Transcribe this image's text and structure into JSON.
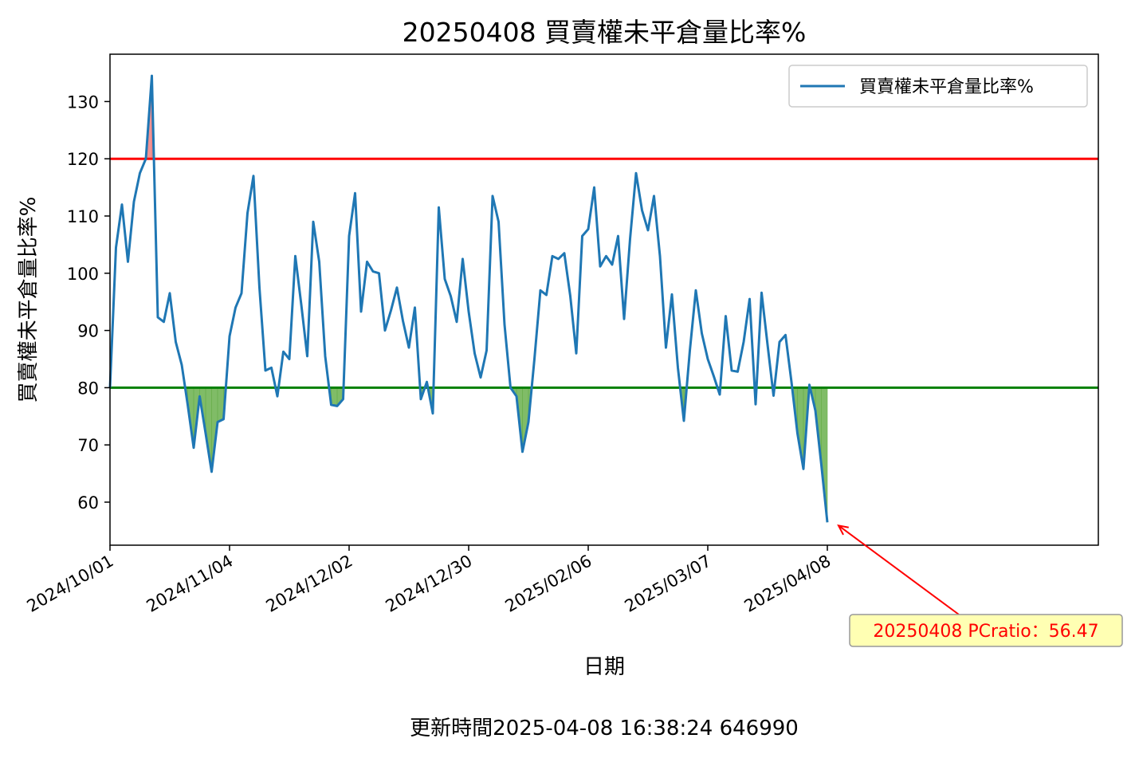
{
  "chart_data": {
    "type": "line",
    "title": "20250408 買賣權未平倉量比率%",
    "xlabel": "日期",
    "ylabel": "買賣權未平倉量比率%",
    "ylim": [
      52.5,
      138.5
    ],
    "yticks": [
      60,
      70,
      80,
      90,
      100,
      110,
      120,
      130
    ],
    "xtick_labels": [
      "2024/10/01",
      "2024/11/04",
      "2024/12/02",
      "2024/12/30",
      "2025/02/06",
      "2025/03/07",
      "2025/04/08"
    ],
    "xtick_index": [
      0,
      20,
      40,
      60,
      80,
      100,
      120
    ],
    "x_range_index": [
      0,
      165
    ],
    "legend": {
      "label": "買賣權未平倉量比率%",
      "position": "upper right"
    },
    "hlines": [
      {
        "y": 120,
        "color": "#ff0000"
      },
      {
        "y": 80,
        "color": "#008000"
      }
    ],
    "fill_above": {
      "threshold": 120,
      "color": "#f08080"
    },
    "fill_below": {
      "threshold": 80,
      "color": "#6ab04c"
    },
    "series": [
      {
        "name": "買賣權未平倉量比率%",
        "color": "#1f77b4",
        "values": [
          80,
          104.5,
          112,
          102,
          112.5,
          117.5,
          120,
          134.5,
          92.3,
          91.5,
          96.5,
          88,
          84,
          77,
          69.5,
          78.5,
          72,
          65.3,
          74,
          74.5,
          89,
          94,
          96.5,
          110.5,
          117,
          97.5,
          83,
          83.5,
          78.5,
          86.3,
          85,
          103,
          94.5,
          85.5,
          109,
          102,
          85.5,
          77,
          76.8,
          78,
          106.5,
          114,
          93.3,
          102,
          100.3,
          100,
          90,
          93.5,
          97.5,
          91.7,
          87,
          94,
          78,
          81,
          75.5,
          111.5,
          99,
          96,
          91.5,
          102.5,
          93.3,
          86,
          81.8,
          86.5,
          113.5,
          109,
          91,
          80,
          78.5,
          68.8,
          74,
          85,
          97,
          96.2,
          103,
          102.5,
          103.5,
          96,
          86,
          106.5,
          107.7,
          115,
          101.2,
          103,
          101.5,
          106.5,
          92,
          106,
          117.5,
          111,
          107.5,
          113.5,
          103,
          87,
          96.3,
          83.5,
          74.2,
          86.5,
          97,
          89.5,
          85,
          82,
          78.8,
          92.5,
          83,
          82.8,
          88,
          95.5,
          77.1,
          96.6,
          87.5,
          78.6,
          88,
          89.2,
          81,
          72,
          65.8,
          80.5,
          76,
          66.5,
          56.47
        ]
      }
    ],
    "annotation": {
      "text": "20250408 PCratio：56.47",
      "point_index": 120,
      "point_value": 56.47,
      "color": "#ff0000",
      "box_color": "#ffffb3"
    }
  },
  "footer": {
    "updated": "更新時間2025-04-08 16:38:24 646990"
  }
}
